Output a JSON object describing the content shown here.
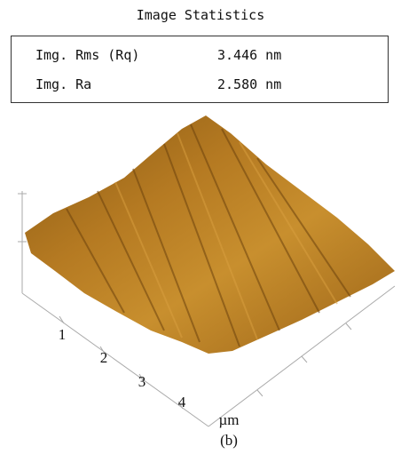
{
  "header": {
    "title": "Image Statistics"
  },
  "table": {
    "rows": [
      [
        "Img. Rms (Rq)",
        "3.446 nm"
      ],
      [
        "Img. Ra",
        "2.580 nm"
      ]
    ]
  },
  "axis": {
    "ticks": [
      "1",
      "2",
      "3",
      "4"
    ],
    "unit": "µm"
  },
  "caption": "(b)"
}
